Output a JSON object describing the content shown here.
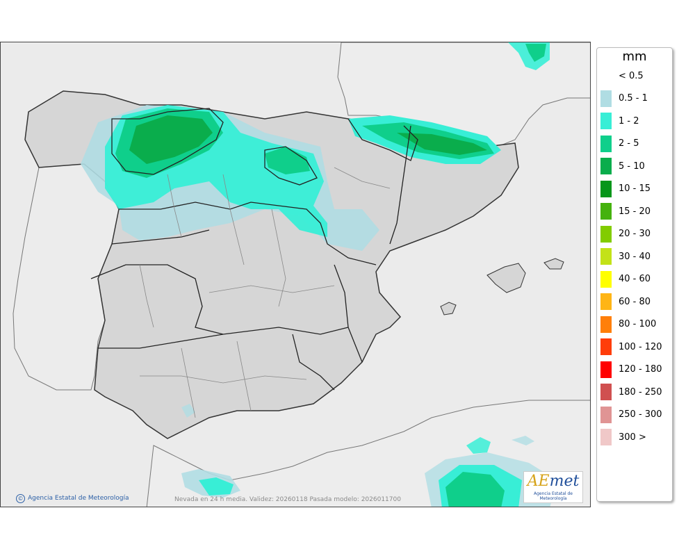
{
  "legend": {
    "unit": "mm",
    "items": [
      {
        "label": "< 0.5",
        "color": "#ffffff"
      },
      {
        "label": "0.5 - 1",
        "color": "#b0dde3"
      },
      {
        "label": "1 - 2",
        "color": "#38eed6"
      },
      {
        "label": "2 - 5",
        "color": "#0fcf8b"
      },
      {
        "label": "5 - 10",
        "color": "#0aad4c"
      },
      {
        "label": "10 - 15",
        "color": "#07961a"
      },
      {
        "label": "15 - 20",
        "color": "#45b20e"
      },
      {
        "label": "20 - 30",
        "color": "#82cc00"
      },
      {
        "label": "30 - 40",
        "color": "#c3e218"
      },
      {
        "label": "40 - 60",
        "color": "#ffff00"
      },
      {
        "label": "60 - 80",
        "color": "#ffb515"
      },
      {
        "label": "80 - 100",
        "color": "#ff7f0a"
      },
      {
        "label": "100 - 120",
        "color": "#ff3d0a"
      },
      {
        "label": "120 - 180",
        "color": "#ff0000"
      },
      {
        "label": "180 - 250",
        "color": "#d05050"
      },
      {
        "label": "250 - 300",
        "color": "#e09494"
      },
      {
        "label": "300 >",
        "color": "#f0c8c8"
      }
    ]
  },
  "footer": {
    "credit": "Agencia Estatal de Meteorología",
    "info": "Nevada en 24 h media. Validez: 20260118 Pasada modelo: 2026011700"
  },
  "logo": {
    "mark_a": "A",
    "mark_e": "E",
    "mark_rest": "met",
    "subtitle": "Agencia Estatal de Meteorología"
  },
  "colors": {
    "sea": "#ebebeb",
    "land": "#d6d6d6",
    "border": "#333333"
  }
}
